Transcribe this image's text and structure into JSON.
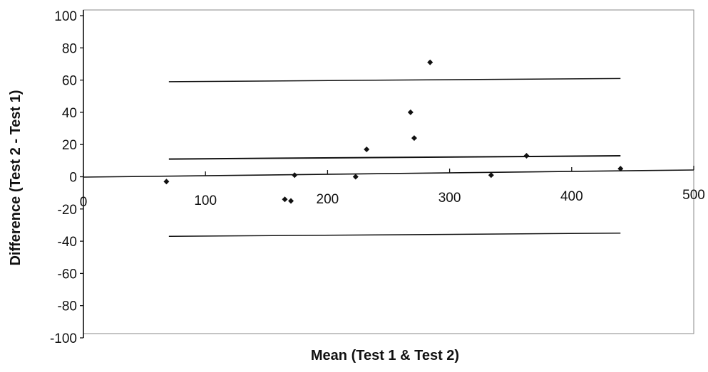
{
  "chart_data": {
    "type": "scatter",
    "title": "",
    "xlabel": "Mean (Test 1 & Test 2)",
    "ylabel": "Difference (Test 2 - Test 1)",
    "xlim": [
      0,
      500
    ],
    "ylim": [
      -100,
      100
    ],
    "x_ticks": [
      "0",
      "100",
      "200",
      "300",
      "400",
      "500"
    ],
    "y_ticks": [
      "100",
      "80",
      "60",
      "40",
      "20",
      "0",
      "-20",
      "-40",
      "-60",
      "-80",
      "-100"
    ],
    "grid": false,
    "legend": "none",
    "marker": "diamond",
    "marker_color": "#111111",
    "points": [
      {
        "x": 68,
        "y": -3
      },
      {
        "x": 165,
        "y": -14
      },
      {
        "x": 170,
        "y": -15
      },
      {
        "x": 173,
        "y": 1
      },
      {
        "x": 223,
        "y": 0
      },
      {
        "x": 232,
        "y": 17
      },
      {
        "x": 268,
        "y": 40
      },
      {
        "x": 271,
        "y": 24
      },
      {
        "x": 284,
        "y": 71
      },
      {
        "x": 334,
        "y": 1
      },
      {
        "x": 363,
        "y": 13
      },
      {
        "x": 440,
        "y": 5
      }
    ],
    "reference_lines": [
      {
        "name": "upper limit of agreement",
        "from": [
          70,
          59
        ],
        "to": [
          440,
          61
        ]
      },
      {
        "name": "mean difference",
        "from": [
          70,
          11
        ],
        "to": [
          440,
          13
        ]
      },
      {
        "name": "lower limit of agreement",
        "from": [
          70,
          -37
        ],
        "to": [
          440,
          -35
        ]
      }
    ]
  }
}
